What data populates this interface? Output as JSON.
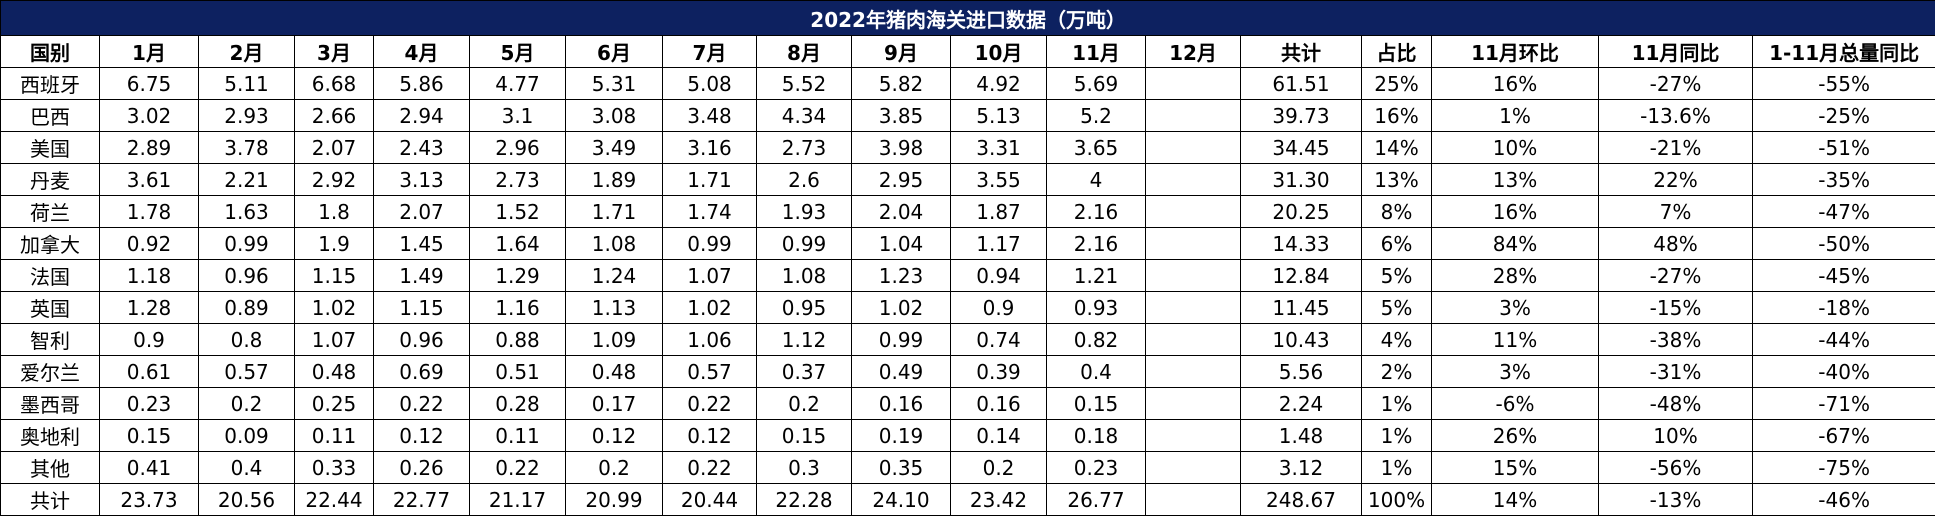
{
  "table": {
    "title": "2022年猪肉海关进口数据（万吨）",
    "header": [
      "国别",
      "1月",
      "2月",
      "3月",
      "4月",
      "5月",
      "6月",
      "7月",
      "8月",
      "9月",
      "10月",
      "11月",
      "12月",
      "共计",
      "占比",
      "11月环比",
      "11月同比",
      "1-11月总量同比"
    ],
    "rows": [
      [
        "西班牙",
        "6.75",
        "5.11",
        "6.68",
        "5.86",
        "4.77",
        "5.31",
        "5.08",
        "5.52",
        "5.82",
        "4.92",
        "5.69",
        null,
        "61.51",
        "25%",
        "16%",
        "-27%",
        "-55%"
      ],
      [
        "巴西",
        "3.02",
        "2.93",
        "2.66",
        "2.94",
        "3.1",
        "3.08",
        "3.48",
        "4.34",
        "3.85",
        "5.13",
        "5.2",
        null,
        "39.73",
        "16%",
        "1%",
        "-13.6%",
        "-25%"
      ],
      [
        "美国",
        "2.89",
        "3.78",
        "2.07",
        "2.43",
        "2.96",
        "3.49",
        "3.16",
        "2.73",
        "3.98",
        "3.31",
        "3.65",
        null,
        "34.45",
        "14%",
        "10%",
        "-21%",
        "-51%"
      ],
      [
        "丹麦",
        "3.61",
        "2.21",
        "2.92",
        "3.13",
        "2.73",
        "1.89",
        "1.71",
        "2.6",
        "2.95",
        "3.55",
        "4",
        null,
        "31.30",
        "13%",
        "13%",
        "22%",
        "-35%"
      ],
      [
        "荷兰",
        "1.78",
        "1.63",
        "1.8",
        "2.07",
        "1.52",
        "1.71",
        "1.74",
        "1.93",
        "2.04",
        "1.87",
        "2.16",
        null,
        "20.25",
        "8%",
        "16%",
        "7%",
        "-47%"
      ],
      [
        "加拿大",
        "0.92",
        "0.99",
        "1.9",
        "1.45",
        "1.64",
        "1.08",
        "0.99",
        "0.99",
        "1.04",
        "1.17",
        "2.16",
        null,
        "14.33",
        "6%",
        "84%",
        "48%",
        "-50%"
      ],
      [
        "法国",
        "1.18",
        "0.96",
        "1.15",
        "1.49",
        "1.29",
        "1.24",
        "1.07",
        "1.08",
        "1.23",
        "0.94",
        "1.21",
        null,
        "12.84",
        "5%",
        "28%",
        "-27%",
        "-45%"
      ],
      [
        "英国",
        "1.28",
        "0.89",
        "1.02",
        "1.15",
        "1.16",
        "1.13",
        "1.02",
        "0.95",
        "1.02",
        "0.9",
        "0.93",
        null,
        "11.45",
        "5%",
        "3%",
        "-15%",
        "-18%"
      ],
      [
        "智利",
        "0.9",
        "0.8",
        "1.07",
        "0.96",
        "0.88",
        "1.09",
        "1.06",
        "1.12",
        "0.99",
        "0.74",
        "0.82",
        null,
        "10.43",
        "4%",
        "11%",
        "-38%",
        "-44%"
      ],
      [
        "爱尔兰",
        "0.61",
        "0.57",
        "0.48",
        "0.69",
        "0.51",
        "0.48",
        "0.57",
        "0.37",
        "0.49",
        "0.39",
        "0.4",
        null,
        "5.56",
        "2%",
        "3%",
        "-31%",
        "-40%"
      ],
      [
        "墨西哥",
        "0.23",
        "0.2",
        "0.25",
        "0.22",
        "0.28",
        "0.17",
        "0.22",
        "0.2",
        "0.16",
        "0.16",
        "0.15",
        null,
        "2.24",
        "1%",
        "-6%",
        "-48%",
        "-71%"
      ],
      [
        "奥地利",
        "0.15",
        "0.09",
        "0.11",
        "0.12",
        "0.11",
        "0.12",
        "0.12",
        "0.15",
        "0.19",
        "0.14",
        "0.18",
        null,
        "1.48",
        "1%",
        "26%",
        "10%",
        "-67%"
      ],
      [
        "其他",
        "0.41",
        "0.4",
        "0.33",
        "0.26",
        "0.22",
        "0.2",
        "0.22",
        "0.3",
        "0.35",
        "0.2",
        "0.23",
        null,
        "3.12",
        "1%",
        "15%",
        "-56%",
        "-75%"
      ],
      [
        "共计",
        "23.73",
        "20.56",
        "22.44",
        "22.77",
        "21.17",
        "20.99",
        "20.44",
        "22.28",
        "24.10",
        "23.42",
        "26.77",
        null,
        "248.67",
        "100%",
        "14%",
        "-13%",
        "-46%"
      ]
    ]
  }
}
